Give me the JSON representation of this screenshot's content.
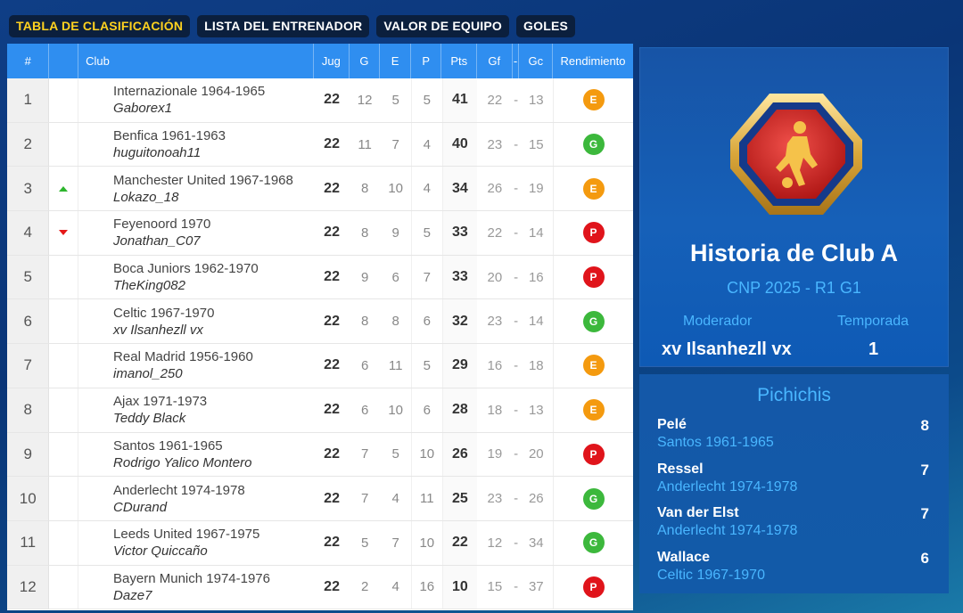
{
  "tabs": [
    {
      "label": "TABLA DE CLASIFICACIÓN",
      "active": true
    },
    {
      "label": "LISTA DEL ENTRENADOR",
      "active": false
    },
    {
      "label": "VALOR DE EQUIPO",
      "active": false
    },
    {
      "label": "GOLES",
      "active": false
    }
  ],
  "table": {
    "headers": {
      "pos": "#",
      "club": "Club",
      "jug": "Jug",
      "g": "G",
      "e": "E",
      "p": "P",
      "pts": "Pts",
      "gf": "Gf",
      "dash": "-",
      "gc": "Gc",
      "rend": "Rendimiento"
    },
    "rows": [
      {
        "pos": "1",
        "trend": "",
        "club": "Internazionale 1964-1965",
        "user": "Gaborex1",
        "jug": "22",
        "g": "12",
        "e": "5",
        "p": "5",
        "pts": "41",
        "gf": "22",
        "sep": "-",
        "gc": "13",
        "rend": "E"
      },
      {
        "pos": "2",
        "trend": "",
        "club": "Benfica 1961-1963",
        "user": "huguitonoah11",
        "jug": "22",
        "g": "11",
        "e": "7",
        "p": "4",
        "pts": "40",
        "gf": "23",
        "sep": "-",
        "gc": "15",
        "rend": "G"
      },
      {
        "pos": "3",
        "trend": "up",
        "club": "Manchester United 1967-1968",
        "user": "Lokazo_18",
        "jug": "22",
        "g": "8",
        "e": "10",
        "p": "4",
        "pts": "34",
        "gf": "26",
        "sep": "-",
        "gc": "19",
        "rend": "E"
      },
      {
        "pos": "4",
        "trend": "down",
        "club": "Feyenoord 1970",
        "user": "Jonathan_C07",
        "jug": "22",
        "g": "8",
        "e": "9",
        "p": "5",
        "pts": "33",
        "gf": "22",
        "sep": "-",
        "gc": "14",
        "rend": "P"
      },
      {
        "pos": "5",
        "trend": "",
        "club": "Boca Juniors 1962-1970",
        "user": "TheKing082",
        "jug": "22",
        "g": "9",
        "e": "6",
        "p": "7",
        "pts": "33",
        "gf": "20",
        "sep": "-",
        "gc": "16",
        "rend": "P"
      },
      {
        "pos": "6",
        "trend": "",
        "club": "Celtic 1967-1970",
        "user": "xv Ilsanhezll vx",
        "jug": "22",
        "g": "8",
        "e": "8",
        "p": "6",
        "pts": "32",
        "gf": "23",
        "sep": "-",
        "gc": "14",
        "rend": "G"
      },
      {
        "pos": "7",
        "trend": "",
        "club": "Real Madrid 1956-1960",
        "user": "imanol_250",
        "jug": "22",
        "g": "6",
        "e": "11",
        "p": "5",
        "pts": "29",
        "gf": "16",
        "sep": "-",
        "gc": "18",
        "rend": "E"
      },
      {
        "pos": "8",
        "trend": "",
        "club": "Ajax 1971-1973",
        "user": "Teddy Black",
        "jug": "22",
        "g": "6",
        "e": "10",
        "p": "6",
        "pts": "28",
        "gf": "18",
        "sep": "-",
        "gc": "13",
        "rend": "E"
      },
      {
        "pos": "9",
        "trend": "",
        "club": "Santos 1961-1965",
        "user": "Rodrigo Yalico Montero",
        "jug": "22",
        "g": "7",
        "e": "5",
        "p": "10",
        "pts": "26",
        "gf": "19",
        "sep": "-",
        "gc": "20",
        "rend": "P"
      },
      {
        "pos": "10",
        "trend": "",
        "club": "Anderlecht 1974-1978",
        "user": "CDurand",
        "jug": "22",
        "g": "7",
        "e": "4",
        "p": "11",
        "pts": "25",
        "gf": "23",
        "sep": "-",
        "gc": "26",
        "rend": "G"
      },
      {
        "pos": "11",
        "trend": "",
        "club": "Leeds United 1967-1975",
        "user": "Victor Quiccaño",
        "jug": "22",
        "g": "5",
        "e": "7",
        "p": "10",
        "pts": "22",
        "gf": "12",
        "sep": "-",
        "gc": "34",
        "rend": "G"
      },
      {
        "pos": "12",
        "trend": "",
        "club": "Bayern Munich 1974-1976",
        "user": "Daze7",
        "jug": "22",
        "g": "2",
        "e": "4",
        "p": "16",
        "pts": "10",
        "gf": "15",
        "sep": "-",
        "gc": "37",
        "rend": "P"
      }
    ]
  },
  "badge_colors": {
    "E": "#f49a0f",
    "G": "#3cb83c",
    "P": "#e0141b"
  },
  "trend_icons": {
    "up": "arrow-up-icon",
    "down": "arrow-down-icon"
  },
  "club_card": {
    "logo_icon": "football-player-icon",
    "title": "Historia de Club A",
    "subtitle": "CNP 2025 - R1 G1",
    "moderator_label": "Moderador",
    "moderator_value": "xv Ilsanhezll vx",
    "season_label": "Temporada",
    "season_value": "1"
  },
  "scorers": {
    "title": "Pichichis",
    "items": [
      {
        "name": "Pelé",
        "club": "Santos 1961-1965",
        "goals": "8"
      },
      {
        "name": "Ressel",
        "club": "Anderlecht 1974-1978",
        "goals": "7"
      },
      {
        "name": "Van der Elst",
        "club": "Anderlecht 1974-1978",
        "goals": "7"
      },
      {
        "name": "Wallace",
        "club": "Celtic 1967-1970",
        "goals": "6"
      }
    ]
  }
}
